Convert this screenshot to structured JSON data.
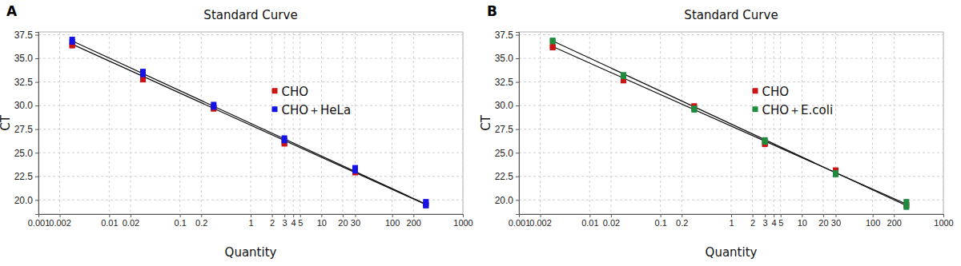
{
  "chart_data": [
    {
      "type": "scatter",
      "label": "A",
      "title": "Standard Curve",
      "x_label": "Quantity",
      "y_label": "CT",
      "log": "x",
      "grid": true,
      "legend": "center",
      "xlim": [
        0.001,
        1000
      ],
      "ylim": [
        18.5,
        37.8
      ],
      "xticks": [
        0.001,
        0.002,
        0.01,
        0.02,
        0.1,
        0.2,
        1,
        2,
        3,
        4,
        5,
        10,
        20,
        30,
        100,
        200,
        1000
      ],
      "yticks": [
        {
          "value": 20,
          "label": "20.0"
        },
        {
          "value": 22.5,
          "label": "22.5"
        },
        {
          "value": 25,
          "label": "25.0"
        },
        {
          "value": 27.5,
          "label": "27.5"
        },
        {
          "value": 30,
          "label": "30.0"
        },
        {
          "value": 32.5,
          "label": "32.5"
        },
        {
          "value": 35,
          "label": "35.0"
        },
        {
          "value": 37.5,
          "label": "37.5"
        }
      ],
      "series": [
        {
          "name": "CHO",
          "color": "#cc1414",
          "marker": "square",
          "x": [
            0.003,
            0.003,
            0.03,
            0.03,
            0.3,
            0.3,
            3,
            3,
            30,
            30,
            300,
            300
          ],
          "values": [
            36.35,
            36.45,
            32.75,
            32.85,
            29.65,
            29.75,
            25.95,
            26.05,
            22.9,
            23.0,
            19.45,
            19.6
          ],
          "fit_x": [
            0.003,
            300
          ],
          "fit_values": [
            36.5,
            19.5
          ]
        },
        {
          "name": "CHO＋HeLa",
          "color": "#1414e6",
          "marker": "square",
          "x": [
            0.003,
            0.003,
            0.03,
            0.03,
            0.3,
            0.3,
            3,
            3,
            30,
            30,
            300,
            300
          ],
          "values": [
            36.75,
            37.0,
            33.3,
            33.6,
            29.85,
            30.1,
            26.3,
            26.55,
            23.1,
            23.4,
            19.4,
            19.8
          ],
          "fit_x": [
            0.003,
            300
          ],
          "fit_values": [
            36.85,
            19.55
          ]
        }
      ]
    },
    {
      "type": "scatter",
      "label": "B",
      "title": "Standard Curve",
      "x_label": "Quantity",
      "y_label": "CT",
      "log": "x",
      "grid": true,
      "legend": "center",
      "xlim": [
        0.001,
        1000
      ],
      "ylim": [
        18.5,
        37.8
      ],
      "xticks": [
        0.001,
        0.002,
        0.01,
        0.02,
        0.1,
        0.2,
        1,
        2,
        3,
        4,
        5,
        10,
        20,
        30,
        100,
        200,
        1000
      ],
      "yticks": [
        {
          "value": 20,
          "label": "20.0"
        },
        {
          "value": 22.5,
          "label": "22.5"
        },
        {
          "value": 25,
          "label": "25.0"
        },
        {
          "value": 27.5,
          "label": "27.5"
        },
        {
          "value": 30,
          "label": "30.0"
        },
        {
          "value": 32.5,
          "label": "32.5"
        },
        {
          "value": 35,
          "label": "35.0"
        },
        {
          "value": 37.5,
          "label": "37.5"
        }
      ],
      "series": [
        {
          "name": "CHO",
          "color": "#cc1414",
          "marker": "square",
          "x": [
            0.003,
            0.003,
            0.03,
            0.03,
            0.3,
            0.3,
            3,
            3,
            30,
            30,
            300,
            300
          ],
          "values": [
            36.15,
            36.25,
            32.65,
            32.75,
            29.85,
            29.95,
            25.9,
            26.0,
            23.05,
            23.15,
            19.4,
            19.5
          ],
          "fit_x": [
            0.003,
            300
          ],
          "fit_values": [
            36.25,
            19.55
          ]
        },
        {
          "name": "CHO＋E.coli",
          "color": "#1e8c3c",
          "marker": "square",
          "x": [
            0.003,
            0.003,
            0.03,
            0.03,
            0.3,
            0.3,
            3,
            3,
            30,
            30,
            300,
            300
          ],
          "values": [
            36.8,
            36.9,
            33.1,
            33.25,
            29.55,
            29.7,
            26.15,
            26.35,
            22.7,
            22.85,
            19.25,
            19.8
          ],
          "fit_x": [
            0.003,
            300
          ],
          "fit_values": [
            36.85,
            19.4
          ]
        }
      ]
    }
  ]
}
